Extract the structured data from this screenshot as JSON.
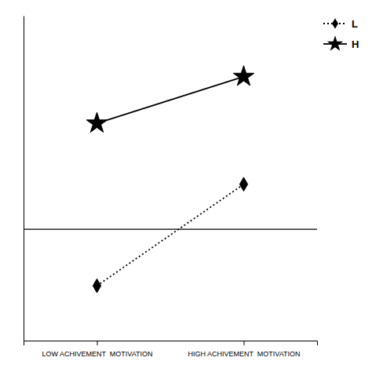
{
  "chart_data": {
    "type": "line",
    "categories": [
      "LOW ACHIVEMENT  MOTIVATION",
      "HIGH ACHIVEMENT  MOTIVATION"
    ],
    "series": [
      {
        "name": "H",
        "color": "#000000",
        "marker": "star",
        "line_style": "solid",
        "values": [
          0.52,
          0.75
        ]
      },
      {
        "name": "L",
        "color": "#000000",
        "marker": "diamond",
        "line_style": "dotted",
        "values": [
          -0.28,
          0.22
        ]
      }
    ],
    "ylim": [
      -0.55,
      1.05
    ],
    "yticks": [
      0
    ],
    "tick_labels": "x",
    "legend": "upper right"
  }
}
